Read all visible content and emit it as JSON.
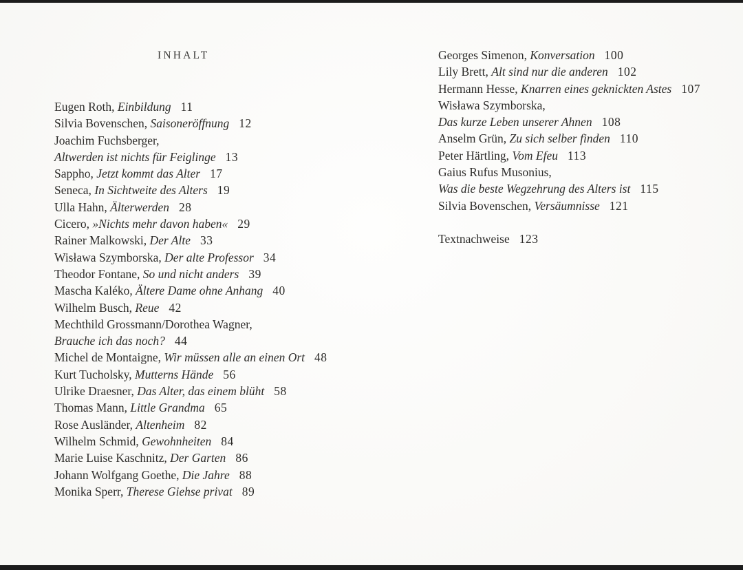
{
  "page": {
    "title": "INHALT",
    "background_color": "#fcfcfa",
    "edge_bar_color": "#1c1c1c",
    "text_color": "#2d2c2a"
  },
  "columns": {
    "left": [
      {
        "roman": "Eugen Roth, ",
        "italic": "Einbildung",
        "page": "11"
      },
      {
        "roman": "Silvia Bovenschen, ",
        "italic": "Saisoneröffnung",
        "page": "12"
      },
      {
        "roman": "Joachim Fuchsberger,"
      },
      {
        "italic": "Altwerden ist nichts für Feiglinge",
        "page": "13"
      },
      {
        "roman": "Sappho, ",
        "italic": "Jetzt kommt das Alter",
        "page": "17"
      },
      {
        "roman": "Seneca, ",
        "italic": "In Sichtweite des Alters",
        "page": "19"
      },
      {
        "roman": "Ulla Hahn, ",
        "italic": "Älterwerden",
        "page": "28"
      },
      {
        "roman": "Cicero, ",
        "italic": "»Nichts mehr davon haben«",
        "page": "29"
      },
      {
        "roman": "Rainer Malkowski, ",
        "italic": "Der Alte",
        "page": "33"
      },
      {
        "roman": "Wisława Szymborska, ",
        "italic": "Der alte Professor",
        "page": "34"
      },
      {
        "roman": "Theodor Fontane, ",
        "italic": "So und nicht anders",
        "page": "39"
      },
      {
        "roman": "Mascha Kaléko, ",
        "italic": "Ältere Dame ohne Anhang",
        "page": "40"
      },
      {
        "roman": "Wilhelm Busch, ",
        "italic": "Reue",
        "page": "42"
      },
      {
        "roman": "Mechthild Grossmann/Dorothea Wagner,"
      },
      {
        "italic": "Brauche ich das noch?",
        "page": "44"
      },
      {
        "roman": "Michel de Montaigne, ",
        "italic": "Wir müssen alle an einen Ort",
        "page": "48"
      },
      {
        "roman": "Kurt Tucholsky, ",
        "italic": "Mutterns Hände",
        "page": "56"
      },
      {
        "roman": "Ulrike Draesner, ",
        "italic": "Das Alter, das einem blüht",
        "page": "58"
      },
      {
        "roman": "Thomas Mann, ",
        "italic": "Little Grandma",
        "page": "65"
      },
      {
        "roman": "Rose Ausländer, ",
        "italic": "Altenheim",
        "page": "82"
      },
      {
        "roman": "Wilhelm Schmid, ",
        "italic": "Gewohnheiten",
        "page": "84"
      },
      {
        "roman": "Marie Luise Kaschnitz, ",
        "italic": "Der Garten",
        "page": "86"
      },
      {
        "roman": "Johann Wolfgang Goethe, ",
        "italic": "Die Jahre",
        "page": "88"
      },
      {
        "roman": "Monika Sperr, ",
        "italic": "Therese Giehse privat",
        "page": "89"
      }
    ],
    "right": [
      {
        "roman": "Georges Simenon, ",
        "italic": "Konversation",
        "page": "100"
      },
      {
        "roman": "Lily Brett, ",
        "italic": "Alt sind nur die anderen",
        "page": "102"
      },
      {
        "roman": "Hermann Hesse, ",
        "italic": "Knarren eines geknickten Astes",
        "page": "107"
      },
      {
        "roman": "Wisława Szymborska,"
      },
      {
        "italic": "Das kurze Leben unserer Ahnen",
        "page": "108"
      },
      {
        "roman": "Anselm Grün, ",
        "italic": "Zu sich selber finden",
        "page": "110"
      },
      {
        "roman": "Peter Härtling, ",
        "italic": "Vom Efeu",
        "page": "113"
      },
      {
        "roman": "Gaius Rufus Musonius,"
      },
      {
        "italic": "Was die beste Wegzehrung des Alters ist",
        "page": "115"
      },
      {
        "roman": "Silvia Bovenschen, ",
        "italic": "Versäumnisse",
        "page": "121"
      },
      {
        "roman": "Textnachweise",
        "page": "123",
        "gap_before": true
      }
    ]
  }
}
